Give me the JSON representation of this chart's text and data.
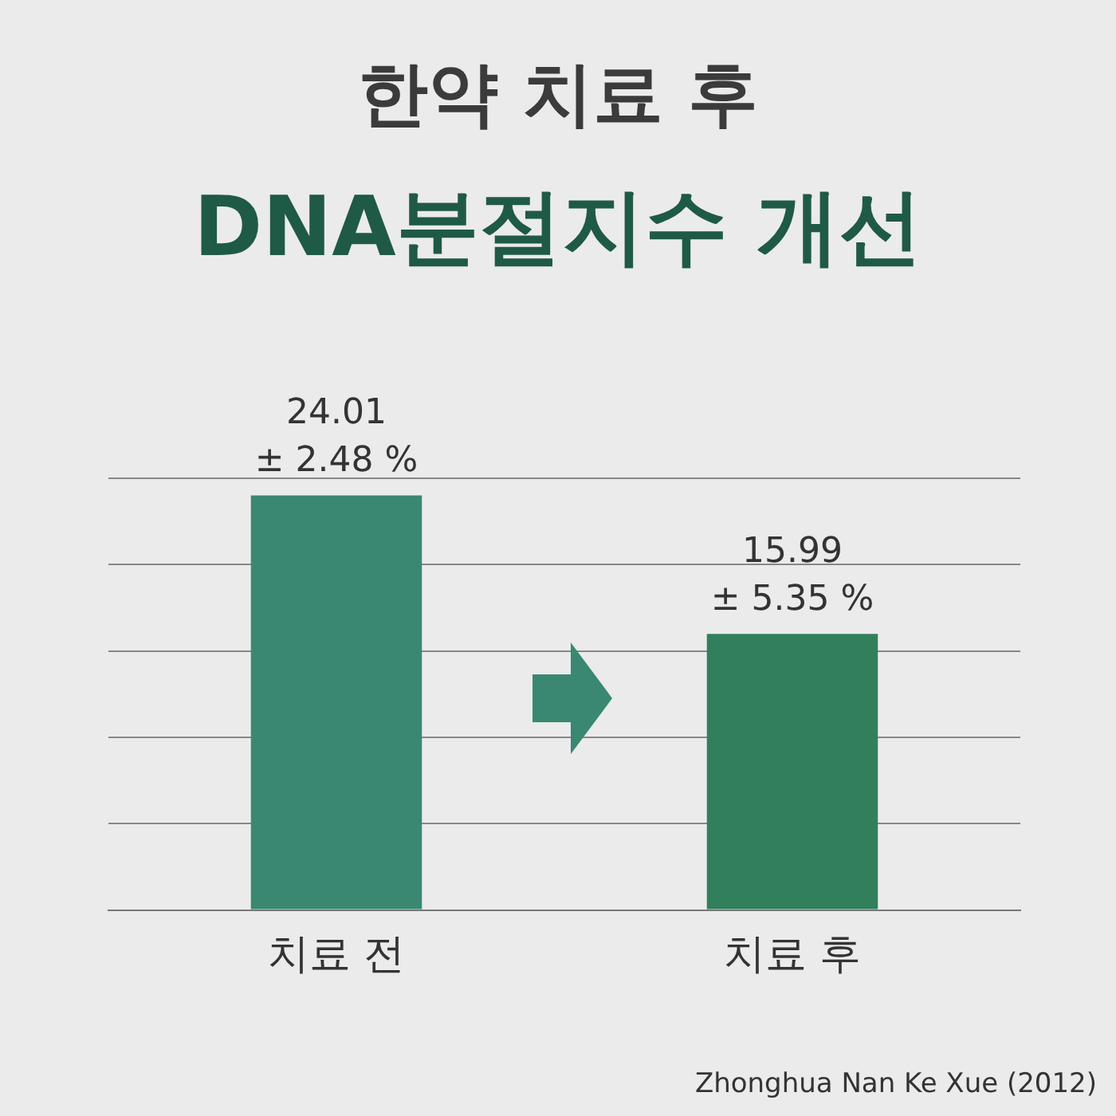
{
  "chart_data": {
    "type": "bar",
    "title": "한약 치료 후",
    "subtitle": "DNA분절지수 개선",
    "categories": [
      "치료 전",
      "치료 후"
    ],
    "values": [
      24.01,
      15.99
    ],
    "colors": [
      "#3a8872",
      "#327f5c"
    ],
    "value_labels": [
      "24.01\n± 2.48 %",
      "15.99\n± 5.35 %"
    ],
    "grid": "y",
    "annotations": [
      "Zhonghua Nan Ke Xue (2012)"
    ]
  }
}
